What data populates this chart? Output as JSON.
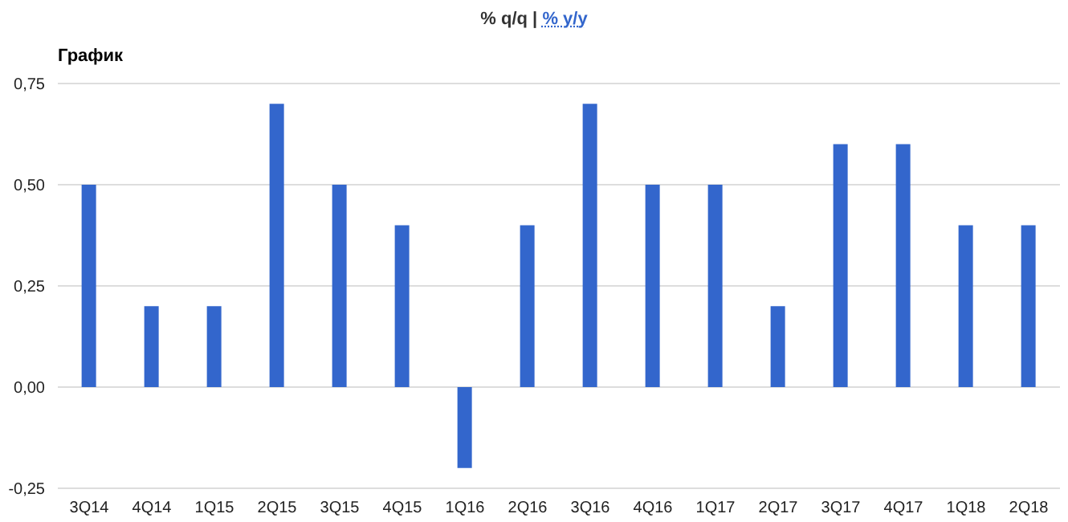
{
  "chart_data": {
    "type": "bar",
    "title": "График",
    "annotations": [
      "% q/q | ",
      "% y/y"
    ],
    "categories": [
      "3Q14",
      "4Q14",
      "1Q15",
      "2Q15",
      "3Q15",
      "4Q15",
      "1Q16",
      "2Q16",
      "3Q16",
      "4Q16",
      "1Q17",
      "2Q17",
      "3Q17",
      "4Q17",
      "1Q18",
      "2Q18"
    ],
    "values": [
      0.5,
      0.2,
      0.2,
      0.7,
      0.5,
      0.4,
      -0.2,
      0.4,
      0.7,
      0.5,
      0.5,
      0.2,
      0.6,
      0.6,
      0.4,
      0.4
    ],
    "color": "#3366cc",
    "ylim": [
      -0.25,
      0.75
    ],
    "yticks": [
      {
        "value": -0.25,
        "label": "-0,25"
      },
      {
        "value": 0,
        "label": "0,00"
      },
      {
        "value": 0.25,
        "label": "0,25"
      },
      {
        "value": 0.5,
        "label": "0,50"
      },
      {
        "value": 0.75,
        "label": "0,75"
      }
    ],
    "grid": "y",
    "legend": false
  }
}
